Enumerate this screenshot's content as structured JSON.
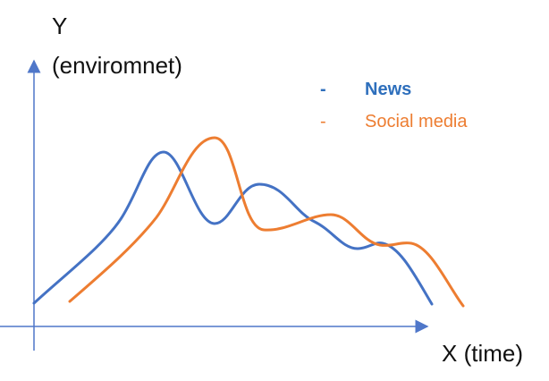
{
  "axes": {
    "y_label_line1": "Y",
    "y_label_line2": "(enviromnet)",
    "x_label": "X (time)",
    "axis_color": "#4f77c9"
  },
  "legend": {
    "items": [
      {
        "marker": "-",
        "label": "News",
        "color": "#2e6fbc",
        "bold": true
      },
      {
        "marker": "-",
        "label": "Social media",
        "color": "#ed7d31",
        "bold": false
      }
    ]
  },
  "curves": [
    {
      "name": "News",
      "color": "#4472c4",
      "description_hidden": false
    },
    {
      "name": "Social media",
      "color": "#ed7d31",
      "description_hidden": false
    }
  ]
}
